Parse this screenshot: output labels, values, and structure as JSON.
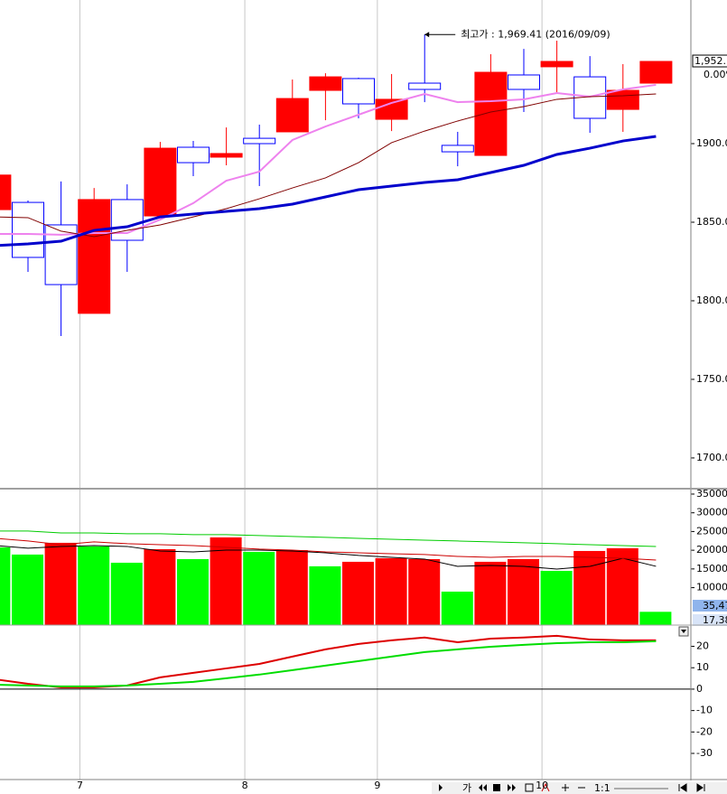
{
  "chart_data": [
    {
      "type": "candlestick",
      "categories": [
        null,
        null,
        null,
        null,
        null,
        null,
        null,
        null,
        null,
        null,
        null,
        null,
        null,
        null,
        null,
        null,
        null,
        null,
        null,
        null,
        null
      ],
      "open": [
        1858,
        1862.6,
        1848.3,
        1792,
        1864.4,
        1854,
        1897.7,
        1891.4,
        1903.4,
        1907.5,
        1933.9,
        1941.4,
        1915.5,
        1938.5,
        1898.9,
        1892.5,
        1943.7,
        1948.9,
        1942.5,
        1921.8,
        1938.5
      ],
      "high": [
        1880,
        1863.8,
        1875.9,
        1871.8,
        1874.1,
        1901.1,
        1901.7,
        1910.3,
        1912.1,
        1940.8,
        1944.8,
        1942,
        1944.3,
        1969.41,
        1907.5,
        1956.9,
        1960.3,
        1965.5,
        1955.7,
        1950.6,
        1952.3
      ],
      "low": [
        1858,
        1818.4,
        1777.6,
        1792,
        1818.4,
        1854,
        1879.3,
        1886.2,
        1873,
        1907.5,
        1914.9,
        1916.1,
        1908,
        1926.4,
        1885.6,
        1892.5,
        1920.1,
        1932.8,
        1906.9,
        1907.5,
        1938.5
      ],
      "close": [
        1880,
        1827.6,
        1810.3,
        1864.4,
        1838.5,
        1897.1,
        1887.9,
        1893.7,
        1900,
        1928.7,
        1942.5,
        1925.3,
        1928.2,
        1934.5,
        1894.8,
        1945.4,
        1934.5,
        1952.3,
        1916.1,
        1933.9,
        1952.3
      ],
      "up_color": "#ff0000",
      "down_color": "#0000ff",
      "lines": [
        {
          "color": "#ee82ee",
          "width": 2,
          "values": [
            1842.5,
            1842.5,
            1842,
            1843.1,
            1843.1,
            1851.7,
            1862.1,
            1876.4,
            1882.2,
            1902.3,
            1910.9,
            1918.4,
            1925.9,
            1931.6,
            1926.4,
            1927,
            1928.2,
            1932.2,
            1929.9,
            1934.5,
            1937.4
          ]
        },
        {
          "color": "#800000",
          "width": 1,
          "values": [
            1853.4,
            1852.9,
            1844.3,
            1840.8,
            1844.8,
            1848.3,
            1853.4,
            1858.6,
            1864.9,
            1871.8,
            1878.2,
            1887.9,
            1900.6,
            1908,
            1914.4,
            1920.1,
            1923.6,
            1928.2,
            1929.9,
            1930.5,
            1931.6
          ]
        },
        {
          "color": "#0000cc",
          "width": 3,
          "values": [
            1835.1,
            1836.2,
            1837.9,
            1844.8,
            1847.1,
            1853.4,
            1855.2,
            1856.9,
            1858.6,
            1861.5,
            1866.1,
            1870.7,
            1873,
            1875.3,
            1877,
            1881.6,
            1886.2,
            1893.1,
            1897.1,
            1901.7,
            1904.6
          ]
        }
      ],
      "ylim": [
        1681,
        1991.4
      ],
      "yticks": [
        {
          "value": 1700,
          "label": "1700.00"
        },
        {
          "value": 1750,
          "label": "1750.00"
        },
        {
          "value": 1800,
          "label": "1800.00"
        },
        {
          "value": 1850,
          "label": "1850.00"
        },
        {
          "value": 1900,
          "label": "1900.00"
        }
      ],
      "annotation": {
        "text": "최고가 : 1,969.41 (2016/09/09)",
        "index": 13,
        "value": 1969.41,
        "color": "#ff0000"
      },
      "price_label": "1,952.",
      "change_label": "0.00%"
    },
    {
      "type": "bar",
      "values": [
        207700,
        188400,
        219800,
        210100,
        166600,
        202900,
        176300,
        234300,
        195600,
        200400,
        157000,
        169100,
        178700,
        176300,
        89400,
        169100,
        176300,
        144900,
        198000,
        205300,
        35470
      ],
      "colors": [
        "#00ff00",
        "#00ff00",
        "#ff0000",
        "#00ff00",
        "#00ff00",
        "#ff0000",
        "#00ff00",
        "#ff0000",
        "#00ff00",
        "#ff0000",
        "#00ff00",
        "#ff0000",
        "#ff0000",
        "#ff0000",
        "#00ff00",
        "#ff0000",
        "#ff0000",
        "#00ff00",
        "#ff0000",
        "#ff0000",
        "#00ff00"
      ],
      "lines": [
        {
          "color": "#000000",
          "values": [
            212500,
            205300,
            210100,
            212500,
            210100,
            198000,
            195600,
            200400,
            200400,
            198000,
            193200,
            186000,
            181100,
            176300,
            157000,
            159400,
            157000,
            149700,
            157000,
            178700,
            157000
          ]
        },
        {
          "color": "#cc0000",
          "values": [
            231800,
            224600,
            214900,
            222200,
            217400,
            214900,
            212500,
            207700,
            202900,
            200400,
            195600,
            193200,
            190800,
            188400,
            183500,
            181100,
            183500,
            183500,
            181100,
            178700,
            173900
          ]
        },
        {
          "color": "#00cc00",
          "values": [
            251200,
            251200,
            246300,
            246300,
            243900,
            243900,
            241500,
            241500,
            239100,
            236700,
            234300,
            231800,
            229400,
            227000,
            224600,
            222200,
            219800,
            217400,
            214900,
            212500,
            210100
          ]
        }
      ],
      "ylim": [
        0,
        362000
      ],
      "yticks": [
        100000,
        150000,
        200000,
        250000,
        300000,
        350000
      ],
      "value_boxes": [
        "35,47",
        "17,38"
      ]
    },
    {
      "type": "line",
      "series": [
        {
          "color": "#dd0000",
          "values": [
            4.6,
            2.5,
            0.8,
            0.8,
            1.7,
            5.5,
            7.6,
            9.7,
            11.8,
            15.2,
            18.6,
            21.1,
            22.8,
            24.1,
            21.9,
            23.6,
            24.1,
            24.9,
            23.2,
            22.8,
            22.8
          ]
        },
        {
          "color": "#00dd00",
          "values": [
            2.1,
            1.7,
            1.3,
            1.3,
            1.7,
            2.5,
            3.4,
            5.1,
            6.8,
            8.9,
            11,
            13.1,
            15.2,
            17.3,
            18.6,
            19.8,
            20.7,
            21.5,
            21.9,
            21.9,
            22.4
          ]
        }
      ],
      "ylim": [
        -41.8,
        29.5
      ],
      "yticks": [
        -30,
        -20,
        -10,
        0,
        10,
        20
      ]
    }
  ],
  "x_axis": {
    "ticks": [
      {
        "value": 2.57,
        "label": "7"
      },
      {
        "value": 7.56,
        "label": "8"
      },
      {
        "value": 11.57,
        "label": "9"
      },
      {
        "value": 16.55,
        "label": "10"
      }
    ]
  },
  "toolbar": {
    "labels": [
      "가",
      "1:1"
    ]
  }
}
